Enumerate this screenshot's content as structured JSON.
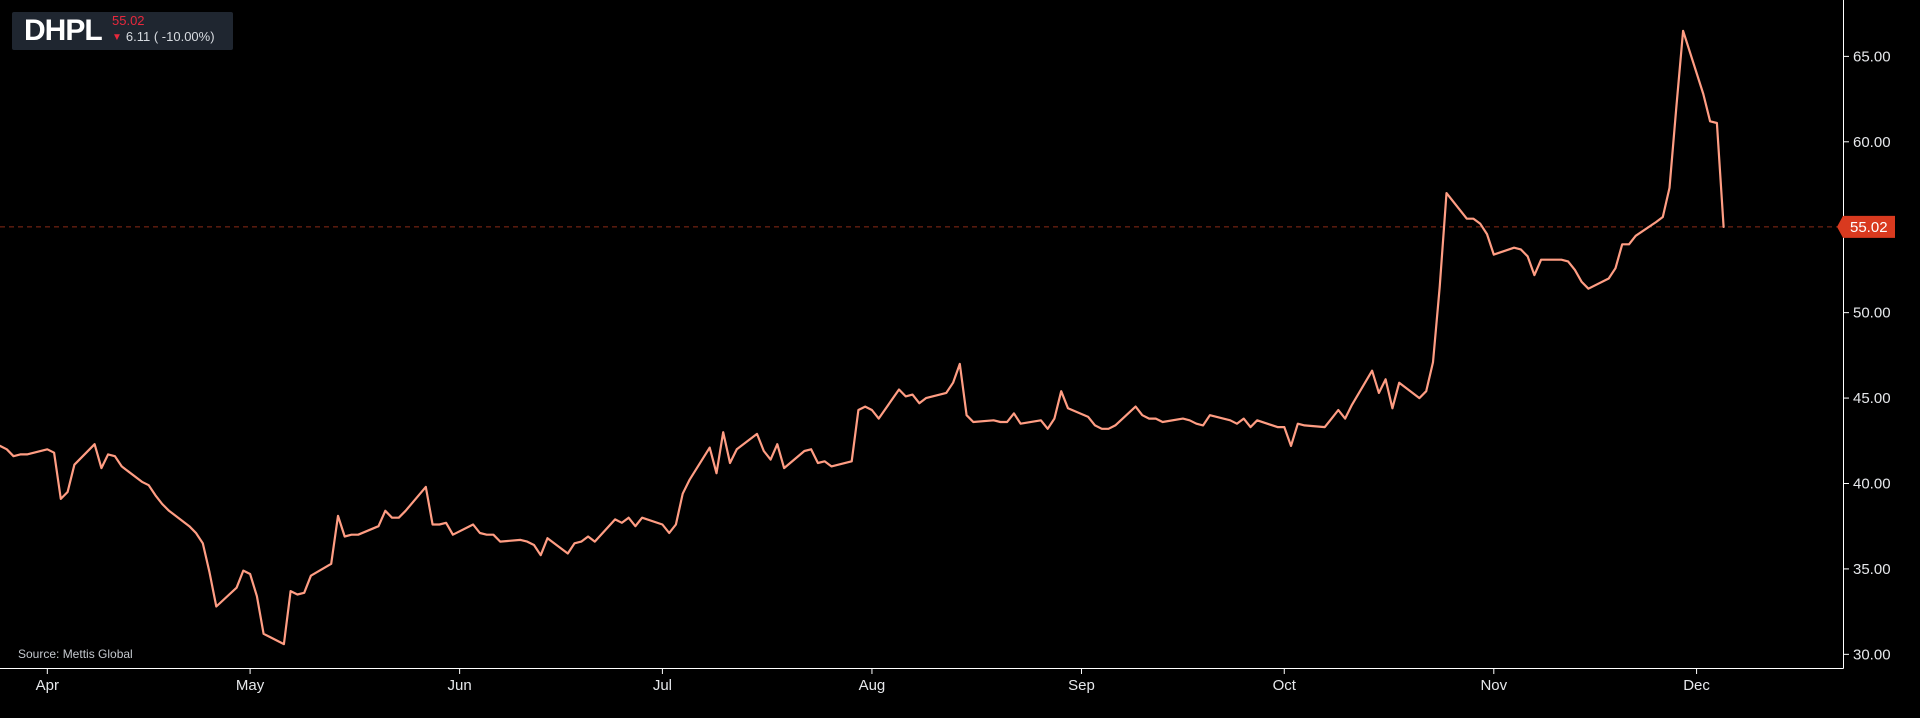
{
  "ticker": {
    "symbol": "DHPL",
    "price": "55.02",
    "change": "6.11 ( -10.00%)",
    "direction_icon": "triangle-down-icon"
  },
  "source": "Source: Mettis Global",
  "colors": {
    "background": "#000000",
    "line": "#ff9d83",
    "last_price_tag": "#d93a1f",
    "last_price_line": "#8a2a17",
    "axis": "#ffffff",
    "ticker_box": "#1f2630",
    "down": "#e8283c"
  },
  "chart_data": {
    "type": "line",
    "title": "",
    "xlabel": "",
    "ylabel": "",
    "ylim": [
      29.2,
      68.3
    ],
    "y_ticks": [
      "30.00",
      "35.00",
      "40.00",
      "45.00",
      "50.00",
      "55.00",
      "60.00",
      "65.00"
    ],
    "x_tick_labels": [
      "Apr",
      "May",
      "Jun",
      "Jul",
      "Aug",
      "Sep",
      "Oct",
      "Nov",
      "Dec"
    ],
    "x_tick_dates": [
      "2024-04-01",
      "2024-05-01",
      "2024-06-01",
      "2024-07-01",
      "2024-08-01",
      "2024-09-01",
      "2024-10-01",
      "2024-11-01",
      "2024-12-01"
    ],
    "x_range": [
      "2024-03-25",
      "2024-12-20"
    ],
    "grid": false,
    "legend": "none",
    "last_price": 55.02,
    "last_price_label": "55.02",
    "series": [
      {
        "name": "",
        "points": [
          [
            "2024-03-25",
            42.2
          ],
          [
            "2024-03-26",
            42.0
          ],
          [
            "2024-03-27",
            41.6
          ],
          [
            "2024-03-28",
            41.7
          ],
          [
            "2024-03-29",
            41.7
          ],
          [
            "2024-04-01",
            42.0
          ],
          [
            "2024-04-02",
            41.8
          ],
          [
            "2024-04-03",
            39.1
          ],
          [
            "2024-04-04",
            39.5
          ],
          [
            "2024-04-05",
            41.1
          ],
          [
            "2024-04-08",
            42.3
          ],
          [
            "2024-04-09",
            40.9
          ],
          [
            "2024-04-10",
            41.7
          ],
          [
            "2024-04-11",
            41.6
          ],
          [
            "2024-04-12",
            41.0
          ],
          [
            "2024-04-15",
            40.1
          ],
          [
            "2024-04-16",
            39.9
          ],
          [
            "2024-04-17",
            39.3
          ],
          [
            "2024-04-18",
            38.8
          ],
          [
            "2024-04-19",
            38.4
          ],
          [
            "2024-04-22",
            37.5
          ],
          [
            "2024-04-23",
            37.1
          ],
          [
            "2024-04-24",
            36.5
          ],
          [
            "2024-04-25",
            34.8
          ],
          [
            "2024-04-26",
            32.8
          ],
          [
            "2024-04-29",
            33.9
          ],
          [
            "2024-04-30",
            34.9
          ],
          [
            "2024-05-01",
            34.7
          ],
          [
            "2024-05-02",
            33.4
          ],
          [
            "2024-05-03",
            31.2
          ],
          [
            "2024-05-06",
            30.6
          ],
          [
            "2024-05-07",
            33.7
          ],
          [
            "2024-05-08",
            33.5
          ],
          [
            "2024-05-09",
            33.6
          ],
          [
            "2024-05-10",
            34.6
          ],
          [
            "2024-05-13",
            35.3
          ],
          [
            "2024-05-14",
            38.1
          ],
          [
            "2024-05-15",
            36.9
          ],
          [
            "2024-05-16",
            37.0
          ],
          [
            "2024-05-17",
            37.0
          ],
          [
            "2024-05-20",
            37.5
          ],
          [
            "2024-05-21",
            38.4
          ],
          [
            "2024-05-22",
            38.0
          ],
          [
            "2024-05-23",
            38.0
          ],
          [
            "2024-05-24",
            38.4
          ],
          [
            "2024-05-27",
            39.8
          ],
          [
            "2024-05-28",
            37.6
          ],
          [
            "2024-05-29",
            37.6
          ],
          [
            "2024-05-30",
            37.7
          ],
          [
            "2024-05-31",
            37.0
          ],
          [
            "2024-06-03",
            37.6
          ],
          [
            "2024-06-04",
            37.1
          ],
          [
            "2024-06-05",
            37.0
          ],
          [
            "2024-06-06",
            37.0
          ],
          [
            "2024-06-07",
            36.6
          ],
          [
            "2024-06-10",
            36.7
          ],
          [
            "2024-06-11",
            36.6
          ],
          [
            "2024-06-12",
            36.4
          ],
          [
            "2024-06-13",
            35.8
          ],
          [
            "2024-06-14",
            36.8
          ],
          [
            "2024-06-17",
            35.9
          ],
          [
            "2024-06-18",
            36.5
          ],
          [
            "2024-06-19",
            36.6
          ],
          [
            "2024-06-20",
            36.9
          ],
          [
            "2024-06-21",
            36.6
          ],
          [
            "2024-06-24",
            37.9
          ],
          [
            "2024-06-25",
            37.7
          ],
          [
            "2024-06-26",
            38.0
          ],
          [
            "2024-06-27",
            37.5
          ],
          [
            "2024-06-28",
            38.0
          ],
          [
            "2024-07-01",
            37.6
          ],
          [
            "2024-07-02",
            37.1
          ],
          [
            "2024-07-03",
            37.6
          ],
          [
            "2024-07-04",
            39.4
          ],
          [
            "2024-07-05",
            40.2
          ],
          [
            "2024-07-08",
            42.1
          ],
          [
            "2024-07-09",
            40.6
          ],
          [
            "2024-07-10",
            43.0
          ],
          [
            "2024-07-11",
            41.2
          ],
          [
            "2024-07-12",
            42.0
          ],
          [
            "2024-07-15",
            42.9
          ],
          [
            "2024-07-16",
            41.9
          ],
          [
            "2024-07-17",
            41.4
          ],
          [
            "2024-07-18",
            42.3
          ],
          [
            "2024-07-19",
            40.9
          ],
          [
            "2024-07-22",
            41.9
          ],
          [
            "2024-07-23",
            42.0
          ],
          [
            "2024-07-24",
            41.2
          ],
          [
            "2024-07-25",
            41.3
          ],
          [
            "2024-07-26",
            41.0
          ],
          [
            "2024-07-29",
            41.3
          ],
          [
            "2024-07-30",
            44.3
          ],
          [
            "2024-07-31",
            44.5
          ],
          [
            "2024-08-01",
            44.3
          ],
          [
            "2024-08-02",
            43.8
          ],
          [
            "2024-08-05",
            45.5
          ],
          [
            "2024-08-06",
            45.1
          ],
          [
            "2024-08-07",
            45.2
          ],
          [
            "2024-08-08",
            44.7
          ],
          [
            "2024-08-09",
            45.0
          ],
          [
            "2024-08-12",
            45.3
          ],
          [
            "2024-08-13",
            45.9
          ],
          [
            "2024-08-14",
            47.0
          ],
          [
            "2024-08-15",
            44.0
          ],
          [
            "2024-08-16",
            43.6
          ],
          [
            "2024-08-19",
            43.7
          ],
          [
            "2024-08-20",
            43.6
          ],
          [
            "2024-08-21",
            43.6
          ],
          [
            "2024-08-22",
            44.1
          ],
          [
            "2024-08-23",
            43.5
          ],
          [
            "2024-08-26",
            43.7
          ],
          [
            "2024-08-27",
            43.2
          ],
          [
            "2024-08-28",
            43.8
          ],
          [
            "2024-08-29",
            45.4
          ],
          [
            "2024-08-30",
            44.4
          ],
          [
            "2024-09-02",
            43.9
          ],
          [
            "2024-09-03",
            43.4
          ],
          [
            "2024-09-04",
            43.2
          ],
          [
            "2024-09-05",
            43.2
          ],
          [
            "2024-09-06",
            43.4
          ],
          [
            "2024-09-09",
            44.5
          ],
          [
            "2024-09-10",
            44.0
          ],
          [
            "2024-09-11",
            43.8
          ],
          [
            "2024-09-12",
            43.8
          ],
          [
            "2024-09-13",
            43.6
          ],
          [
            "2024-09-16",
            43.8
          ],
          [
            "2024-09-17",
            43.7
          ],
          [
            "2024-09-18",
            43.5
          ],
          [
            "2024-09-19",
            43.4
          ],
          [
            "2024-09-20",
            44.0
          ],
          [
            "2024-09-23",
            43.7
          ],
          [
            "2024-09-24",
            43.5
          ],
          [
            "2024-09-25",
            43.8
          ],
          [
            "2024-09-26",
            43.3
          ],
          [
            "2024-09-27",
            43.7
          ],
          [
            "2024-09-30",
            43.3
          ],
          [
            "2024-10-01",
            43.3
          ],
          [
            "2024-10-02",
            42.2
          ],
          [
            "2024-10-03",
            43.5
          ],
          [
            "2024-10-04",
            43.4
          ],
          [
            "2024-10-07",
            43.3
          ],
          [
            "2024-10-08",
            43.8
          ],
          [
            "2024-10-09",
            44.3
          ],
          [
            "2024-10-10",
            43.8
          ],
          [
            "2024-10-11",
            44.6
          ],
          [
            "2024-10-14",
            46.6
          ],
          [
            "2024-10-15",
            45.3
          ],
          [
            "2024-10-16",
            46.1
          ],
          [
            "2024-10-17",
            44.4
          ],
          [
            "2024-10-18",
            45.9
          ],
          [
            "2024-10-21",
            45.0
          ],
          [
            "2024-10-22",
            45.4
          ],
          [
            "2024-10-23",
            47.1
          ],
          [
            "2024-10-24",
            51.5
          ],
          [
            "2024-10-25",
            57.0
          ],
          [
            "2024-10-28",
            55.5
          ],
          [
            "2024-10-29",
            55.5
          ],
          [
            "2024-10-30",
            55.2
          ],
          [
            "2024-10-31",
            54.6
          ],
          [
            "2024-11-01",
            53.4
          ],
          [
            "2024-11-04",
            53.8
          ],
          [
            "2024-11-05",
            53.7
          ],
          [
            "2024-11-06",
            53.3
          ],
          [
            "2024-11-07",
            52.2
          ],
          [
            "2024-11-08",
            53.1
          ],
          [
            "2024-11-11",
            53.1
          ],
          [
            "2024-11-12",
            53.0
          ],
          [
            "2024-11-13",
            52.5
          ],
          [
            "2024-11-14",
            51.8
          ],
          [
            "2024-11-15",
            51.4
          ],
          [
            "2024-11-18",
            52.0
          ],
          [
            "2024-11-19",
            52.6
          ],
          [
            "2024-11-20",
            54.0
          ],
          [
            "2024-11-21",
            54.0
          ],
          [
            "2024-11-22",
            54.5
          ],
          [
            "2024-11-25",
            55.3
          ],
          [
            "2024-11-26",
            55.6
          ],
          [
            "2024-11-27",
            57.3
          ],
          [
            "2024-11-28",
            62.0
          ],
          [
            "2024-11-29",
            66.5
          ],
          [
            "2024-12-02",
            62.8
          ],
          [
            "2024-12-03",
            61.2
          ],
          [
            "2024-12-04",
            61.1
          ],
          [
            "2024-12-05",
            55.02
          ]
        ]
      }
    ]
  }
}
